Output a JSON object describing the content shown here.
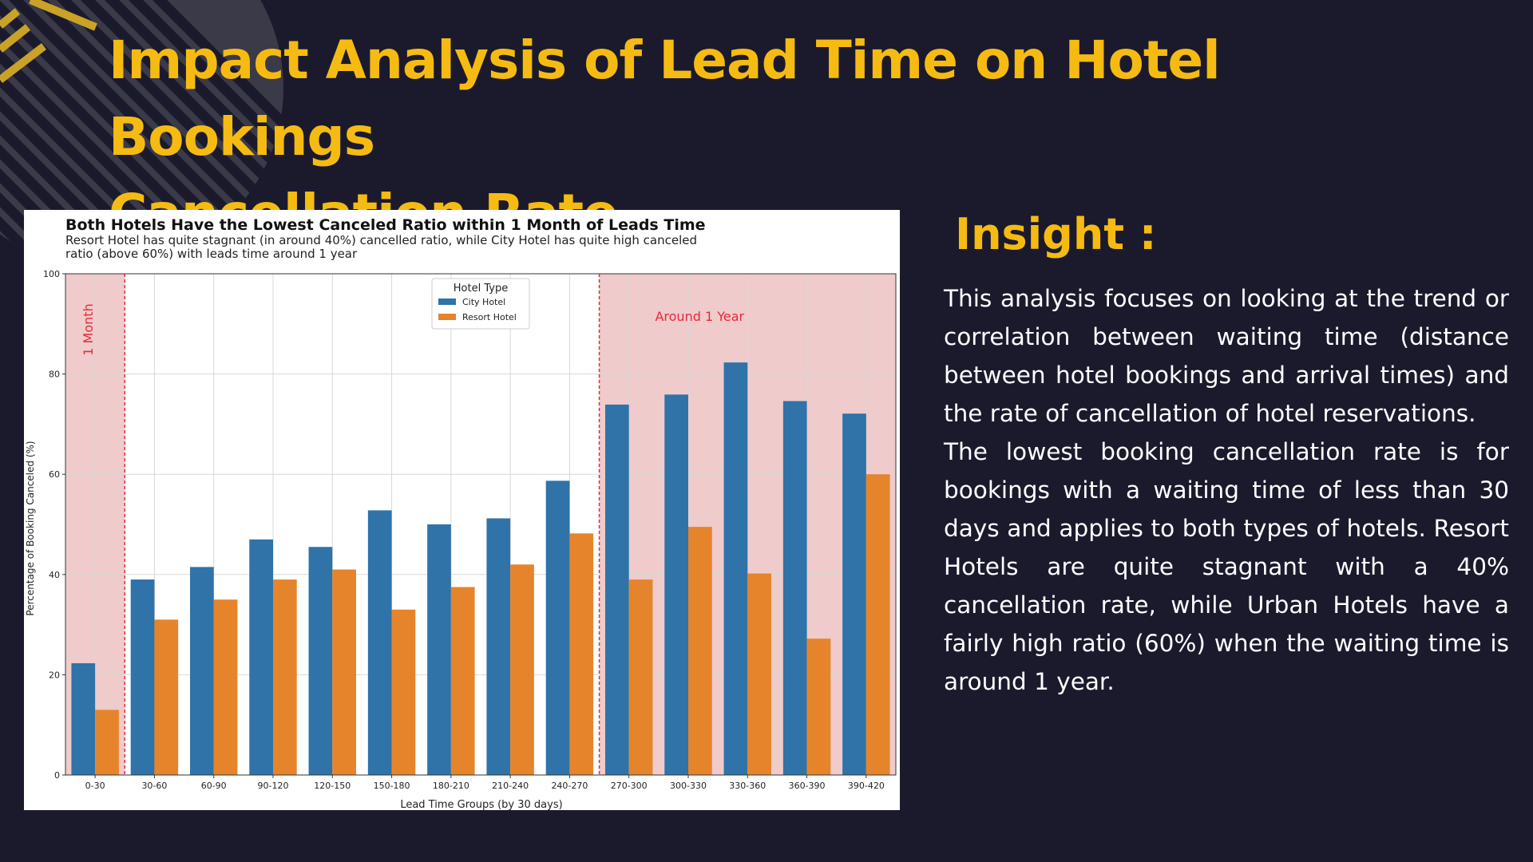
{
  "slide": {
    "title_line1": "Impact Analysis of Lead Time on Hotel Bookings",
    "title_line2": "Cancellation Rate"
  },
  "insight": {
    "heading": "Insight :",
    "paragraph1": "This analysis focuses on looking at the trend or correlation between waiting time (distance between hotel bookings and arrival times) and the rate of cancellation of hotel reservations.",
    "paragraph2": "The lowest booking cancellation rate is for bookings with a waiting time of less than 30 days and applies to both types of hotels. Resort Hotels are quite stagnant with a 40% cancellation rate, while Urban Hotels have a fairly high ratio (60%) when the waiting time is around 1 year."
  },
  "colors": {
    "background": "#1b1a2d",
    "accent": "#f6bb12",
    "city_hotel": "#2f73a8",
    "resort_hotel": "#e6842c",
    "highlight_region": "#efcbcb",
    "annotation_red": "#e8283a"
  },
  "chart_data": {
    "type": "bar",
    "title": "Both Hotels Have the Lowest Canceled Ratio within 1 Month of Leads Time",
    "subtitle_line1": "Resort Hotel has quite stagnant (in around 40%) cancelled ratio, while City Hotel has quite high canceled",
    "subtitle_line2": "ratio (above 60%) with leads time around 1 year",
    "xlabel": "Lead Time Groups (by 30 days)",
    "ylabel": "Percentage of Booking Canceled (%)",
    "ylim": [
      0,
      100
    ],
    "yticks": [
      0,
      20,
      40,
      60,
      80,
      100
    ],
    "grid": true,
    "legend": {
      "title": "Hotel Type",
      "placement": "top-center"
    },
    "categories": [
      "0-30",
      "30-60",
      "60-90",
      "90-120",
      "120-150",
      "150-180",
      "180-210",
      "210-240",
      "240-270",
      "270-300",
      "300-330",
      "330-360",
      "360-390",
      "390-420"
    ],
    "series": [
      {
        "name": "City Hotel",
        "values": [
          22.3,
          39.0,
          41.5,
          47.0,
          45.5,
          52.8,
          50.0,
          51.2,
          58.7,
          73.9,
          75.9,
          82.3,
          74.6,
          72.1
        ]
      },
      {
        "name": "Resort Hotel",
        "values": [
          13.0,
          31.0,
          35.0,
          39.0,
          41.0,
          33.0,
          37.5,
          42.0,
          48.2,
          39.0,
          49.5,
          40.2,
          27.2,
          60.0
        ]
      }
    ],
    "annotations": [
      {
        "text": "1 Month",
        "span": [
          "0-30",
          "0-30"
        ]
      },
      {
        "text": "Around 1 Year",
        "span": [
          "270-300",
          "390-420"
        ]
      }
    ]
  }
}
